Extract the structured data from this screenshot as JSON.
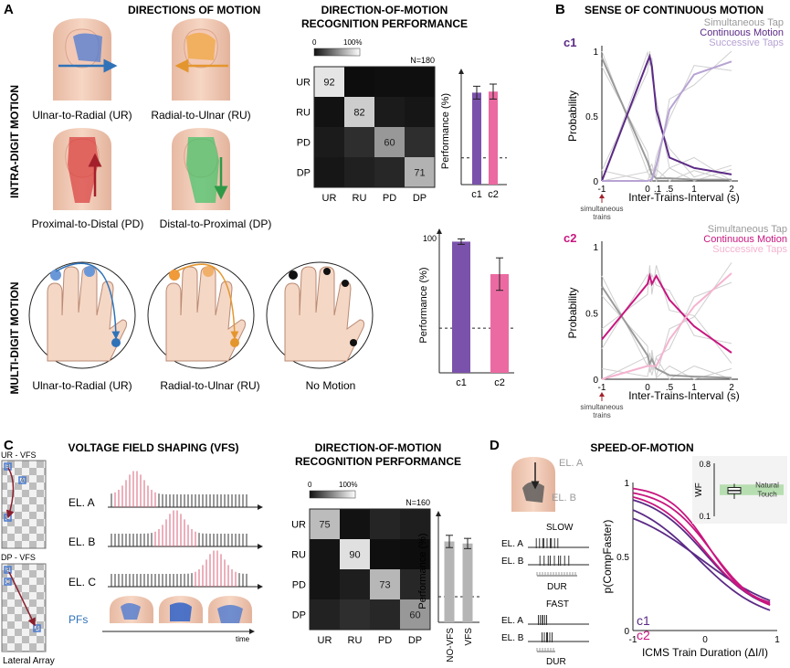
{
  "panels": {
    "A": {
      "letter": "A",
      "intra_label": "INTRA-DIGIT MOTION",
      "multi_label": "MULTI-DIGIT MOTION",
      "directions_title": "DIRECTIONS OF MOTION",
      "perf_title_1": "DIRECTION-OF-MOTION",
      "perf_title_2": "RECOGNITION PERFORMANCE",
      "finger_labels": [
        "Ulnar-to-Radial (UR)",
        "Radial-to-Ulnar (RU)",
        "Proximal-to-Distal (PD)",
        "Distal-to-Proximal (DP)"
      ],
      "hand_labels": [
        "Ulnar-to-Radial (UR)",
        "Radial-to-Ulnar (RU)",
        "No Motion"
      ]
    },
    "B": {
      "letter": "B",
      "title": "SENSE OF CONTINUOUS MOTION"
    },
    "C": {
      "letter": "C",
      "title": "VOLTAGE FIELD SHAPING (VFS)",
      "perf_title_1": "DIRECTION-OF-MOTION",
      "perf_title_2": "RECOGNITION PERFORMANCE",
      "array_top": "UR - VFS",
      "array_bottom": "DP - VFS",
      "array_caption": "Lateral Array",
      "electrode_letters": [
        "A",
        "B",
        "C"
      ],
      "electrodes": [
        "EL. A",
        "EL. B",
        "EL. C"
      ],
      "pfs": "PFs",
      "time": "time"
    },
    "D": {
      "letter": "D",
      "title": "SPEED-OF-MOTION",
      "el_a": "EL. A",
      "el_b": "EL. B",
      "slow": "SLOW",
      "fast": "FAST",
      "dur": "DUR"
    }
  },
  "colors": {
    "purple": "#7b52ab",
    "pink": "#ec6aa2",
    "dark_purple": "#5b2a86",
    "magenta": "#c8167f",
    "gray": "#9a9a9a",
    "light_purple": "#b7a3d4",
    "light_pink": "#f5b3d0",
    "vfs_gray": "#b5b5b5",
    "red_spike": "#d9607a"
  },
  "chart_data": [
    {
      "id": "A-confusion-intra",
      "type": "heatmap",
      "n_label": "N=180",
      "scale_min": "0",
      "scale_max": "100%",
      "rows": [
        "UR",
        "RU",
        "PD",
        "DP"
      ],
      "cols": [
        "UR",
        "RU",
        "PD",
        "DP"
      ],
      "values": [
        [
          92,
          2,
          3,
          3
        ],
        [
          4,
          82,
          8,
          6
        ],
        [
          8,
          16,
          60,
          16
        ],
        [
          6,
          10,
          13,
          71
        ]
      ],
      "labels_shown": [
        "92",
        "82",
        "60",
        "71"
      ]
    },
    {
      "id": "A-bar-intra",
      "type": "bar",
      "categories": [
        "c1",
        "c2"
      ],
      "values": [
        86,
        87
      ],
      "errors": [
        6,
        7
      ],
      "ylim": [
        0,
        100
      ],
      "ylabel": "Performance (%)",
      "chance": 25
    },
    {
      "id": "A-bar-multi",
      "type": "bar",
      "categories": [
        "c1",
        "c2"
      ],
      "values": [
        97,
        73
      ],
      "errors": [
        2,
        12
      ],
      "ylim": [
        0,
        100
      ],
      "yticks": [
        "100"
      ],
      "ylabel": "Performance (%)",
      "chance": 33
    },
    {
      "id": "B-c1",
      "type": "line",
      "label": "c1",
      "ylabel": "Probability",
      "xlabel": "Inter-Trains-Interval (s)",
      "xticks": [
        "-1",
        "0",
        ".1",
        ".5",
        "1",
        "2"
      ],
      "yticks": [
        "0",
        "0.5",
        "1"
      ],
      "ylim": [
        0,
        1
      ],
      "arrow_label": "simultaneous trains",
      "legend": [
        "Simultaneous Tap",
        "Continuous Motion",
        "Successive Taps"
      ],
      "series": [
        {
          "name": "Simultaneous Tap",
          "x": [
            -1,
            0,
            0.1,
            0.2,
            0.5,
            1,
            2
          ],
          "y": [
            0.95,
            0.15,
            0.05,
            0.02,
            0.02,
            0.01,
            0.01
          ]
        },
        {
          "name": "Continuous Motion",
          "x": [
            -1,
            0,
            0.05,
            0.1,
            0.2,
            0.5,
            1,
            2
          ],
          "y": [
            0.0,
            0.92,
            0.96,
            0.88,
            0.55,
            0.18,
            0.1,
            0.05
          ]
        },
        {
          "name": "Successive Taps",
          "x": [
            -1,
            0,
            0.1,
            0.2,
            0.5,
            1,
            2
          ],
          "y": [
            0.0,
            0.0,
            0.01,
            0.12,
            0.55,
            0.82,
            0.92
          ]
        }
      ]
    },
    {
      "id": "B-c2",
      "type": "line",
      "label": "c2",
      "ylabel": "Probability",
      "xlabel": "Inter-Trains-Interval (s)",
      "xticks": [
        "-1",
        "0",
        ".5",
        "1",
        "2"
      ],
      "yticks": [
        "0",
        "0.5",
        "1"
      ],
      "ylim": [
        0,
        1
      ],
      "arrow_label": "simultaneous trains",
      "legend": [
        "Simultaneous Tap",
        "Continuous Motion",
        "Successive Taps"
      ],
      "series": [
        {
          "name": "Simultaneous Tap",
          "x": [
            -1,
            0,
            0.05,
            0.1,
            0.2,
            0.5,
            1,
            2
          ],
          "y": [
            0.7,
            0.18,
            0.12,
            0.15,
            0.08,
            0.03,
            0.02,
            0.01
          ]
        },
        {
          "name": "Continuous Motion",
          "x": [
            -1,
            0,
            0.05,
            0.1,
            0.2,
            0.5,
            1,
            2
          ],
          "y": [
            0.3,
            0.72,
            0.78,
            0.72,
            0.78,
            0.6,
            0.4,
            0.2
          ]
        },
        {
          "name": "Successive Taps",
          "x": [
            -1,
            0,
            0.1,
            0.2,
            0.5,
            1,
            2
          ],
          "y": [
            0.0,
            0.1,
            0.1,
            0.1,
            0.3,
            0.55,
            0.8
          ]
        }
      ]
    },
    {
      "id": "C-confusion-vfs",
      "type": "heatmap",
      "n_label": "N=160",
      "scale_min": "0",
      "scale_max": "100%",
      "rows": [
        "UR",
        "RU",
        "PD",
        "DP"
      ],
      "cols": [
        "UR",
        "RU",
        "PD",
        "DP"
      ],
      "values": [
        [
          75,
          4,
          12,
          9
        ],
        [
          5,
          90,
          3,
          2
        ],
        [
          5,
          9,
          73,
          13
        ],
        [
          11,
          16,
          13,
          60
        ]
      ],
      "labels_shown": [
        "75",
        "90",
        "73",
        "60"
      ]
    },
    {
      "id": "C-bar-vfs",
      "type": "bar",
      "categories": [
        "NO-VFS",
        "VFS"
      ],
      "values": [
        79,
        77
      ],
      "errors": [
        6,
        5
      ],
      "ylim": [
        0,
        100
      ],
      "ylabel": "Performance (%)",
      "chance": 25
    },
    {
      "id": "D-psychometric",
      "type": "line",
      "xlabel": "ICMS Train Duration (ΔI/I)",
      "ylabel": "p(CompFaster)",
      "xticks": [
        "-1",
        "0",
        "1"
      ],
      "yticks": [
        "0",
        "0.5",
        "1"
      ],
      "xlim": [
        -1,
        1
      ],
      "ylim": [
        0,
        1
      ],
      "legend": [
        "c1",
        "c2"
      ],
      "series": [
        {
          "name": "c1 curve 1",
          "group": "c1",
          "slope": 2.6,
          "x0": 0.0,
          "lo": 0.1,
          "hi": 0.94
        },
        {
          "name": "c1 curve 2",
          "group": "c1",
          "slope": 2.2,
          "x0": -0.1,
          "lo": 0.05,
          "hi": 0.92
        },
        {
          "name": "c1 curve 3",
          "group": "c1",
          "slope": 1.8,
          "x0": -0.05,
          "lo": 0.08,
          "hi": 0.88
        },
        {
          "name": "c2 curve 1",
          "group": "c2",
          "slope": 3.5,
          "x0": 0.05,
          "lo": 0.15,
          "hi": 0.98
        },
        {
          "name": "c2 curve 2",
          "group": "c2",
          "slope": 3.0,
          "x0": 0.1,
          "lo": 0.1,
          "hi": 0.96
        },
        {
          "name": "c2 curve 3",
          "group": "c2",
          "slope": 2.8,
          "x0": 0.0,
          "lo": 0.12,
          "hi": 0.95
        }
      ],
      "inset": {
        "ylabel": "WF",
        "yticks": [
          "0.8",
          "0.1"
        ],
        "band_label": "Natural Touch",
        "box": {
          "q1": 0.4,
          "median": 0.44,
          "q3": 0.48,
          "min": 0.33,
          "max": 0.53
        }
      }
    }
  ]
}
